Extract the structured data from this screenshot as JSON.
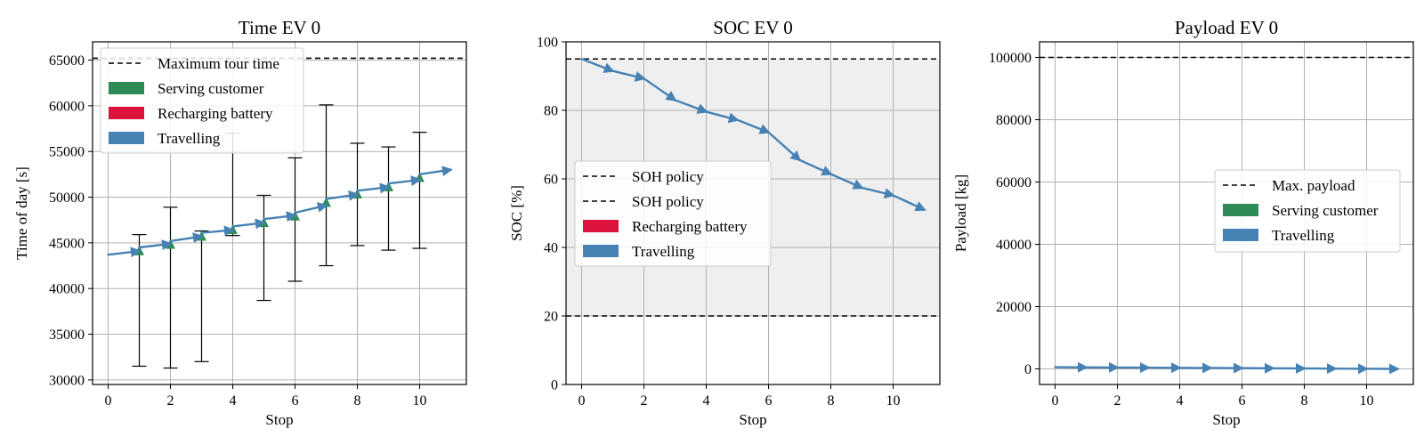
{
  "chart_data": [
    {
      "type": "line",
      "title": "Time EV 0",
      "xlabel": "Stop",
      "ylabel": "Time of day [s]",
      "xlim": [
        -0.5,
        11.5
      ],
      "ylim": [
        29500,
        67000
      ],
      "xticks": [
        0,
        2,
        4,
        6,
        8,
        10
      ],
      "yticks": [
        30000,
        35000,
        40000,
        45000,
        50000,
        55000,
        60000,
        65000
      ],
      "grid": true,
      "legend_position": "top-left",
      "legend": [
        {
          "label": "Maximum tour time",
          "kind": "dashed",
          "color": "#000000"
        },
        {
          "label": "Serving customer",
          "kind": "patch",
          "color": "#2e8b57"
        },
        {
          "label": "Recharging battery",
          "kind": "patch",
          "color": "#dc143c"
        },
        {
          "label": "Travelling",
          "kind": "patch",
          "color": "#4682b4"
        }
      ],
      "hlines": [
        {
          "y": 65200,
          "style": "dashed",
          "color": "#000000"
        }
      ],
      "travel_segments": [
        {
          "x0": 0,
          "y0": 43700,
          "x1": 1,
          "y1": 44100
        },
        {
          "x0": 1,
          "y0": 44500,
          "x1": 2,
          "y1": 44900
        },
        {
          "x0": 2,
          "y0": 45200,
          "x1": 3,
          "y1": 45700
        },
        {
          "x0": 3,
          "y0": 46100,
          "x1": 4,
          "y1": 46400
        },
        {
          "x0": 4,
          "y0": 46800,
          "x1": 5,
          "y1": 47200
        },
        {
          "x0": 5,
          "y0": 47600,
          "x1": 6,
          "y1": 48000
        },
        {
          "x0": 6,
          "y0": 48300,
          "x1": 7,
          "y1": 49100
        },
        {
          "x0": 7,
          "y0": 49800,
          "x1": 8,
          "y1": 50300
        },
        {
          "x0": 8,
          "y0": 50700,
          "x1": 9,
          "y1": 51100
        },
        {
          "x0": 9,
          "y0": 51500,
          "x1": 10,
          "y1": 51900
        },
        {
          "x0": 10,
          "y0": 52500,
          "x1": 11,
          "y1": 53000
        }
      ],
      "service_segments": [
        {
          "x": 1,
          "y0": 44100,
          "y1": 44500
        },
        {
          "x": 2,
          "y0": 44900,
          "y1": 45200
        },
        {
          "x": 3,
          "y0": 45700,
          "y1": 46100
        },
        {
          "x": 4,
          "y0": 46400,
          "y1": 46800
        },
        {
          "x": 5,
          "y0": 47200,
          "y1": 47600
        },
        {
          "x": 6,
          "y0": 48000,
          "y1": 48300
        },
        {
          "x": 7,
          "y0": 49100,
          "y1": 49800
        },
        {
          "x": 8,
          "y0": 50300,
          "y1": 50700
        },
        {
          "x": 9,
          "y0": 51100,
          "y1": 51500
        },
        {
          "x": 10,
          "y0": 51900,
          "y1": 52500
        }
      ],
      "time_windows": [
        {
          "x": 1,
          "low": 31500,
          "high": 45900
        },
        {
          "x": 2,
          "low": 31300,
          "high": 48900
        },
        {
          "x": 3,
          "low": 32000,
          "high": 46300
        },
        {
          "x": 4,
          "low": 45800,
          "high": 57000
        },
        {
          "x": 5,
          "low": 38700,
          "high": 50200
        },
        {
          "x": 6,
          "low": 40800,
          "high": 54300
        },
        {
          "x": 7,
          "low": 42500,
          "high": 60100
        },
        {
          "x": 8,
          "low": 44700,
          "high": 55900
        },
        {
          "x": 9,
          "low": 44200,
          "high": 55500
        },
        {
          "x": 10,
          "low": 44400,
          "high": 57100
        }
      ]
    },
    {
      "type": "line",
      "title": "SOC EV 0",
      "xlabel": "Stop",
      "ylabel": "SOC [%]",
      "xlim": [
        -0.5,
        11.5
      ],
      "ylim": [
        0,
        100
      ],
      "xticks": [
        0,
        2,
        4,
        6,
        8,
        10
      ],
      "yticks": [
        0,
        20,
        40,
        60,
        80,
        100
      ],
      "grid": true,
      "legend_position": "center-left",
      "legend": [
        {
          "label": "SOH policy",
          "kind": "dashed",
          "color": "#000000"
        },
        {
          "label": "SOH policy",
          "kind": "dashed",
          "color": "#000000"
        },
        {
          "label": "Recharging battery",
          "kind": "patch",
          "color": "#dc143c"
        },
        {
          "label": "Travelling",
          "kind": "patch",
          "color": "#4682b4"
        }
      ],
      "hlines": [
        {
          "y": 95,
          "style": "dashed",
          "color": "#000000"
        },
        {
          "y": 20,
          "style": "dashed",
          "color": "#000000"
        }
      ],
      "shaded_band": {
        "y0": 20,
        "y1": 95,
        "color": "#efefef"
      },
      "travel_segments": [
        {
          "x0": 0,
          "y0": 95,
          "x1": 1,
          "y1": 91.5
        },
        {
          "x0": 1,
          "y0": 91.5,
          "x1": 2,
          "y1": 89.3
        },
        {
          "x0": 2,
          "y0": 89.3,
          "x1": 3,
          "y1": 83.0
        },
        {
          "x0": 3,
          "y0": 83.0,
          "x1": 4,
          "y1": 79.6
        },
        {
          "x0": 4,
          "y0": 79.6,
          "x1": 5,
          "y1": 77.2
        },
        {
          "x0": 5,
          "y0": 77.2,
          "x1": 6,
          "y1": 73.6
        },
        {
          "x0": 6,
          "y0": 73.6,
          "x1": 7,
          "y1": 65.5
        },
        {
          "x0": 7,
          "y0": 65.5,
          "x1": 8,
          "y1": 61.4
        },
        {
          "x0": 8,
          "y0": 61.4,
          "x1": 9,
          "y1": 57.4
        },
        {
          "x0": 9,
          "y0": 57.4,
          "x1": 10,
          "y1": 55.2
        },
        {
          "x0": 10,
          "y0": 55.2,
          "x1": 11,
          "y1": 51.0
        }
      ]
    },
    {
      "type": "line",
      "title": "Payload EV 0",
      "xlabel": "Stop",
      "ylabel": "Payload [kg]",
      "xlim": [
        -0.5,
        11.5
      ],
      "ylim": [
        -5000,
        105000
      ],
      "xticks": [
        0,
        2,
        4,
        6,
        8,
        10
      ],
      "yticks": [
        0,
        20000,
        40000,
        60000,
        80000,
        100000
      ],
      "grid": true,
      "legend_position": "center-right",
      "legend": [
        {
          "label": "Max. payload",
          "kind": "dashed",
          "color": "#000000"
        },
        {
          "label": "Serving customer",
          "kind": "patch",
          "color": "#2e8b57"
        },
        {
          "label": "Travelling",
          "kind": "patch",
          "color": "#4682b4"
        }
      ],
      "hlines": [
        {
          "y": 100000,
          "style": "dashed",
          "color": "#000000"
        }
      ],
      "travel_segments": [
        {
          "x0": 0,
          "y0": 550,
          "x1": 1,
          "y1": 500
        },
        {
          "x0": 1,
          "y0": 500,
          "x1": 2,
          "y1": 450
        },
        {
          "x0": 2,
          "y0": 450,
          "x1": 3,
          "y1": 400
        },
        {
          "x0": 3,
          "y0": 400,
          "x1": 4,
          "y1": 350
        },
        {
          "x0": 4,
          "y0": 350,
          "x1": 5,
          "y1": 300
        },
        {
          "x0": 5,
          "y0": 300,
          "x1": 6,
          "y1": 250
        },
        {
          "x0": 6,
          "y0": 250,
          "x1": 7,
          "y1": 200
        },
        {
          "x0": 7,
          "y0": 200,
          "x1": 8,
          "y1": 150
        },
        {
          "x0": 8,
          "y0": 150,
          "x1": 9,
          "y1": 100
        },
        {
          "x0": 9,
          "y0": 100,
          "x1": 10,
          "y1": 50
        },
        {
          "x0": 10,
          "y0": 50,
          "x1": 11,
          "y1": 0
        }
      ]
    }
  ]
}
